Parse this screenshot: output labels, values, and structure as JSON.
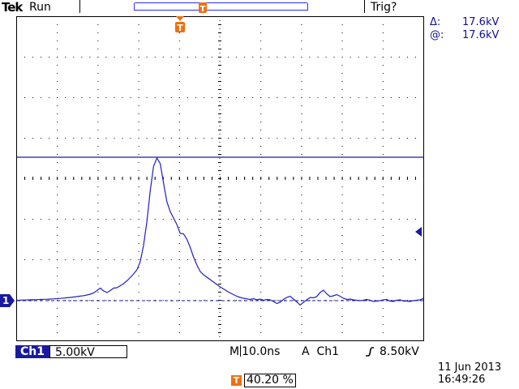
{
  "status": {
    "logo": "Tek",
    "run_state": "Run",
    "trigger_state": "Trig?"
  },
  "cursors": {
    "delta_symbol": "Δ:",
    "delta_value": "17.6kV",
    "at_symbol": "@:",
    "at_value": "17.6kV"
  },
  "channel": {
    "label": "Ch1",
    "volts_per_div": "5.00kV",
    "ground_marker": "1"
  },
  "timebase": {
    "prefix": "M",
    "value": "10.0ns"
  },
  "trigger": {
    "mode": "A",
    "source": "Ch1",
    "slope_icon": "rising-edge-icon",
    "level": "8.50kV",
    "marker": "T",
    "position": "40.20 %"
  },
  "datetime": {
    "date": "11 Jun  2013",
    "time": "16:49:26"
  },
  "colors": {
    "trace": "#2020c0",
    "cursor": "#1a1aa0",
    "trigger_marker": "#f07010",
    "graticule": "#000000"
  },
  "waveform_kV": [
    0.05,
    0.06,
    0.08,
    0.09,
    0.11,
    0.12,
    0.13,
    0.15,
    0.17,
    0.18,
    0.2,
    0.22,
    0.25,
    0.28,
    0.32,
    0.36,
    0.4,
    0.45,
    0.5,
    0.56,
    0.62,
    0.7,
    0.8,
    0.95,
    1.25,
    1.55,
    1.2,
    1.0,
    1.25,
    1.55,
    1.6,
    1.85,
    2.1,
    2.45,
    2.85,
    3.3,
    3.8,
    4.8,
    6.8,
    9.8,
    13.6,
    16.6,
    17.6,
    16.9,
    14.5,
    12.2,
    11.0,
    10.2,
    9.4,
    8.3,
    8.25,
    7.6,
    6.6,
    5.4,
    4.4,
    3.6,
    3.2,
    2.9,
    2.6,
    2.3,
    2.0,
    1.7,
    1.45,
    1.2,
    0.95,
    0.75,
    0.55,
    0.4,
    0.3,
    0.22,
    0.15,
    0.25,
    0.1,
    0.2,
    0.05,
    0.15,
    0.1,
    -0.1,
    -0.35,
    -0.2,
    0.15,
    0.4,
    0.55,
    0.2,
    -0.15,
    -0.55,
    -0.2,
    0.1,
    0.4,
    0.35,
    0.5,
    1.0,
    1.3,
    0.85,
    0.5,
    0.6,
    0.75,
    0.55,
    0.3,
    0.15,
    0.2,
    0.1,
    0.05,
    0.0,
    0.05,
    0.15,
    0.05,
    -0.1,
    -0.05,
    0.0,
    0.1,
    0.15,
    -0.05,
    -0.1,
    0.05,
    0.1,
    -0.05,
    -0.05,
    -0.1,
    0.0,
    0.05,
    0.1,
    0.25
  ]
}
